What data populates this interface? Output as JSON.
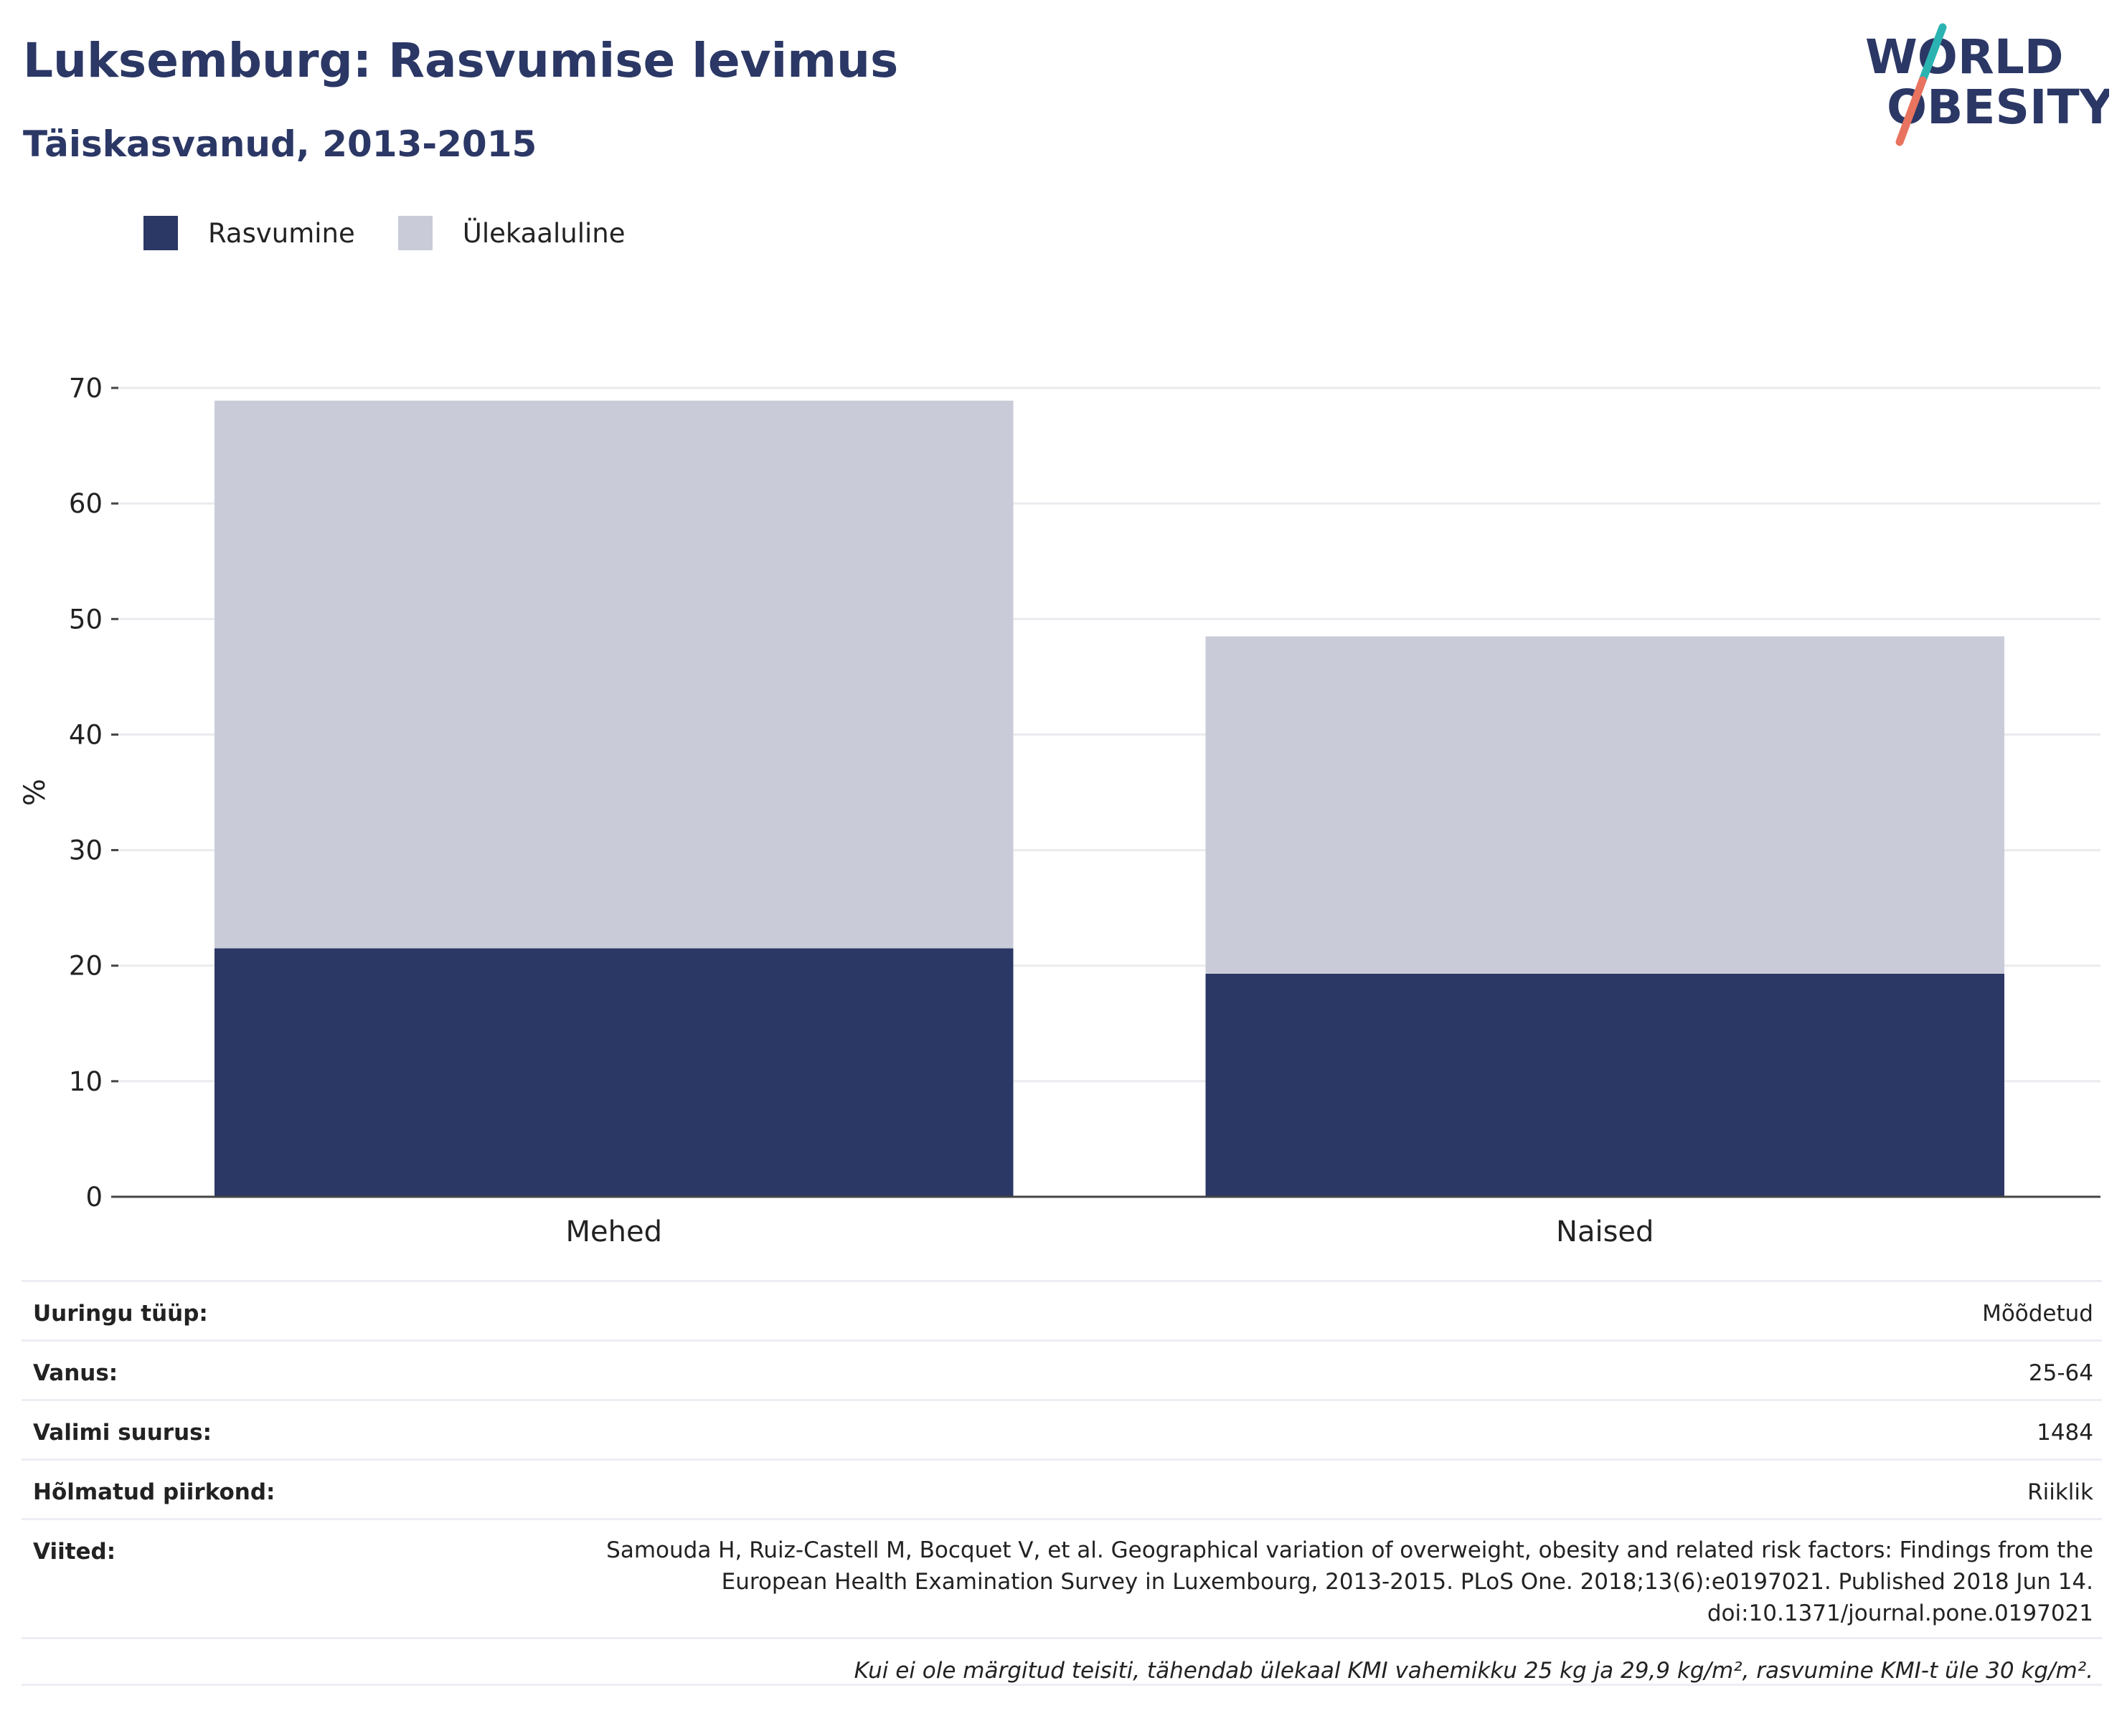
{
  "header": {
    "title": "Luksemburg: Rasvumise levimus",
    "subtitle": "Täiskasvanud, 2013-2015"
  },
  "logo": {
    "line1": "WORLD",
    "line2": "OBESITY",
    "colors": {
      "text": "#2b3765",
      "slash_top": "#2bb3b1",
      "slash_bottom": "#e8735f"
    }
  },
  "legend": [
    {
      "label": "Rasvumine",
      "color": "#2b3765"
    },
    {
      "label": "Ülekaaluline",
      "color": "#c9ccd8"
    }
  ],
  "chart_data": {
    "type": "bar",
    "stacked": true,
    "categories": [
      "Mehed",
      "Naised"
    ],
    "series": [
      {
        "name": "Rasvumine",
        "values": [
          21.5,
          19.3
        ],
        "color": "#2b3765"
      },
      {
        "name": "Ülekaaluline",
        "values": [
          47.4,
          29.2
        ],
        "color": "#c9ccd8"
      }
    ],
    "ylabel": "%",
    "ylim": [
      0,
      70
    ],
    "yticks": [
      0,
      10,
      20,
      30,
      40,
      50,
      60,
      70
    ],
    "grid": true,
    "legend_position": "top-left"
  },
  "info": {
    "rows": [
      {
        "key": "Uuringu tüüp:",
        "value": "Mõõdetud"
      },
      {
        "key": "Vanus:",
        "value": "25-64"
      },
      {
        "key": "Valimi suurus:",
        "value": "1484"
      },
      {
        "key": "Hõlmatud piirkond:",
        "value": "Riiklik"
      }
    ],
    "references_key": "Viited:",
    "references_value": "Samouda H, Ruiz-Castell M, Bocquet V, et al. Geographical variation of overweight, obesity and related risk factors: Findings from the European Health Examination Survey in Luxembourg, 2013-2015. PLoS One. 2018;13(6):e0197021. Published 2018 Jun 14. doi:10.1371/journal.pone.0197021",
    "note": "Kui ei ole märgitud teisiti, tähendab ülekaal KMI vahemikku 25 kg ja 29,9 kg/m², rasvumine KMI-t üle 30 kg/m²."
  }
}
